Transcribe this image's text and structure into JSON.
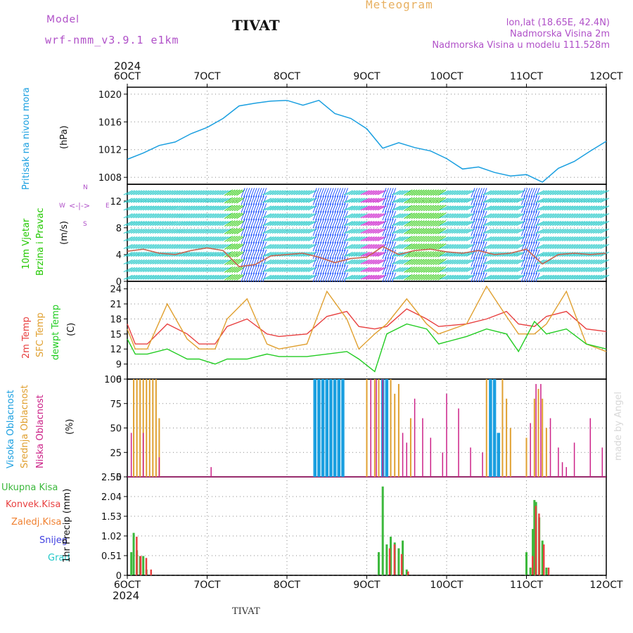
{
  "header": {
    "model_label": "Model",
    "model_name": "wrf-nmm_v3.9.1  e1km",
    "station": "TIVAT",
    "meteogram": "Meteogram",
    "lonlat": "lon,lat (18.65E, 42.4N)",
    "elevation": "Nadmorska Visina 2m",
    "model_elevation": "Nadmorska Visina u modelu 111.528m",
    "year_top": "2024",
    "year_bottom": "2024",
    "footer_station": "TIVAT",
    "credit": "made by Angel"
  },
  "colors": {
    "pressure": "#1a9fe0",
    "wind_cyan": "#22c8c8",
    "wind_green": "#22c800",
    "wind_blue": "#2255ff",
    "wind_magenta": "#cc22cc",
    "temp2m": "#e84040",
    "sfc": "#e0a030",
    "dew": "#22cc22",
    "high_cloud": "#1a9fe0",
    "mid_cloud": "#e0a030",
    "low_cloud": "#cc2288",
    "total_rain": "#3cb83c",
    "conv_rain": "#e84040",
    "frozen_rain": "#f08030",
    "snow": "#4040e0",
    "hail": "#22c8c8",
    "purple_text": "#b050c8",
    "meteogram_text": "#e8b060"
  },
  "chart_data": [
    {
      "type": "line",
      "name": "pressure",
      "ylabel_lines": [
        "Pritisak na nivou mora",
        "(hPa)"
      ],
      "ylim": [
        1007,
        1021
      ],
      "yticks": [
        "1020",
        "1016",
        "1012",
        "1008"
      ],
      "ytick_values": [
        1020,
        1016,
        1012,
        1008
      ],
      "x": [
        6,
        6.2,
        6.4,
        6.6,
        6.8,
        7.0,
        7.2,
        7.4,
        7.6,
        7.8,
        8.0,
        8.2,
        8.4,
        8.6,
        8.8,
        9.0,
        9.2,
        9.4,
        9.6,
        9.8,
        10.0,
        10.2,
        10.4,
        10.6,
        10.8,
        11.0,
        11.2,
        11.4,
        11.6,
        11.8,
        12.0
      ],
      "y": [
        1010.6,
        1011.5,
        1012.6,
        1013.1,
        1014.3,
        1015.2,
        1016.5,
        1018.3,
        1018.7,
        1019.0,
        1019.1,
        1018.4,
        1019.1,
        1017.2,
        1016.5,
        1015.0,
        1012.2,
        1013.0,
        1012.3,
        1011.8,
        1010.7,
        1009.2,
        1009.5,
        1008.7,
        1008.2,
        1008.4,
        1007.3,
        1009.3,
        1010.3,
        1011.8,
        1013.2
      ]
    },
    {
      "type": "line",
      "name": "wind",
      "ylabel_lines": [
        "10m Vjetar",
        "Brzina i Pravac",
        "(m/s)"
      ],
      "ylim": [
        0,
        14.5
      ],
      "yticks": [
        "12",
        "8",
        "4",
        "0"
      ],
      "ytick_values": [
        12,
        8,
        4,
        0
      ],
      "compass": [
        "N",
        "E",
        "S",
        "W"
      ],
      "x": [
        6,
        6.2,
        6.4,
        6.6,
        6.8,
        7.0,
        7.2,
        7.4,
        7.6,
        7.8,
        8.0,
        8.2,
        8.4,
        8.6,
        8.8,
        9.0,
        9.2,
        9.4,
        9.6,
        9.8,
        10.0,
        10.2,
        10.4,
        10.6,
        10.8,
        11.0,
        11.2,
        11.4,
        11.6,
        11.8,
        12.0
      ],
      "y": [
        4.5,
        4.8,
        4.2,
        4.0,
        4.6,
        5.0,
        4.6,
        2.2,
        2.5,
        3.8,
        4.0,
        4.2,
        3.6,
        2.8,
        3.4,
        3.6,
        5.2,
        4.0,
        4.6,
        4.8,
        4.4,
        4.2,
        4.6,
        4.0,
        4.2,
        4.8,
        2.6,
        4.0,
        4.2,
        4.0,
        4.2
      ]
    },
    {
      "type": "line",
      "name": "temperature",
      "ylabel_lines": [
        "2m Temp",
        "SFC Temp",
        "dewpt Temp",
        "(C)"
      ],
      "ylim": [
        6,
        25.5
      ],
      "yticks": [
        "24",
        "21",
        "18",
        "15",
        "12",
        "9",
        "6"
      ],
      "ytick_values": [
        24,
        21,
        18,
        15,
        12,
        9,
        6
      ],
      "series": [
        {
          "name": "2m Temp",
          "x": [
            6,
            6.1,
            6.25,
            6.5,
            6.75,
            6.9,
            7.1,
            7.25,
            7.5,
            7.75,
            7.9,
            8.25,
            8.5,
            8.75,
            8.9,
            9.1,
            9.25,
            9.5,
            9.75,
            9.9,
            10.25,
            10.5,
            10.75,
            10.9,
            11.1,
            11.25,
            11.5,
            11.75,
            12
          ],
          "y": [
            17,
            13,
            13,
            17,
            15,
            13,
            13,
            16.5,
            18,
            15,
            14.5,
            15,
            18.5,
            19.5,
            16.5,
            16,
            16.5,
            20,
            18,
            16.5,
            17,
            18,
            19.5,
            17,
            16.5,
            18.5,
            19.5,
            16,
            15.5
          ]
        },
        {
          "name": "SFC Temp",
          "x": [
            6,
            6.1,
            6.25,
            6.5,
            6.75,
            6.9,
            7.1,
            7.25,
            7.5,
            7.75,
            7.9,
            8.25,
            8.5,
            8.75,
            8.9,
            9.1,
            9.25,
            9.5,
            9.75,
            9.9,
            10.25,
            10.5,
            10.75,
            10.9,
            11.1,
            11.25,
            11.5,
            11.75,
            12
          ],
          "y": [
            16,
            12,
            12,
            21,
            14,
            12,
            12,
            18,
            22,
            13,
            12,
            13,
            23.5,
            18,
            12,
            15,
            17,
            22,
            17,
            15,
            17,
            24.5,
            18.5,
            15,
            15,
            17,
            23.5,
            13,
            11.5
          ]
        },
        {
          "name": "dewpt Temp",
          "x": [
            6,
            6.1,
            6.25,
            6.5,
            6.75,
            6.9,
            7.1,
            7.25,
            7.5,
            7.75,
            7.9,
            8.25,
            8.5,
            8.75,
            8.9,
            9.1,
            9.25,
            9.5,
            9.75,
            9.9,
            10.25,
            10.5,
            10.75,
            10.9,
            11.1,
            11.25,
            11.5,
            11.75,
            12
          ],
          "y": [
            14,
            11,
            11,
            12,
            10,
            10,
            9,
            10,
            10,
            11,
            10.5,
            10.5,
            11,
            11.5,
            10,
            7.5,
            15,
            17,
            16,
            13,
            14.5,
            16,
            15,
            11.5,
            17.5,
            15,
            16,
            13,
            12
          ]
        }
      ]
    },
    {
      "type": "bar",
      "name": "cloud",
      "ylabel_lines": [
        "Visoka Oblacnost",
        "Srednja Oblacnost",
        "Niska Oblacnost",
        "(%)"
      ],
      "ylim": [
        0,
        100
      ],
      "yticks": [
        "100",
        "75",
        "50",
        "25",
        "0"
      ],
      "ytick_values": [
        100,
        75,
        50,
        25,
        0
      ],
      "series": [
        {
          "name": "Visoka Oblacnost",
          "x": [
            8.35,
            8.4,
            8.45,
            8.5,
            8.55,
            8.6,
            8.65,
            8.7,
            9.2,
            9.25,
            10.55,
            10.6,
            10.65
          ],
          "values": [
            100,
            100,
            100,
            100,
            100,
            100,
            100,
            100,
            100,
            100,
            100,
            100,
            45
          ]
        },
        {
          "name": "Srednja Oblacnost",
          "x": [
            6.08,
            6.12,
            6.16,
            6.2,
            6.24,
            6.28,
            6.32,
            6.36,
            6.4,
            9.0,
            9.1,
            9.15,
            9.3,
            9.35,
            9.4,
            9.55,
            10.5,
            10.7,
            10.75,
            10.8,
            11.0,
            11.1,
            11.15,
            11.2,
            11.25
          ],
          "values": [
            100,
            100,
            100,
            100,
            100,
            100,
            100,
            100,
            60,
            100,
            100,
            100,
            100,
            85,
            95,
            60,
            100,
            100,
            80,
            50,
            40,
            80,
            90,
            80,
            50
          ]
        },
        {
          "name": "Niska Oblacnost",
          "x": [
            6.05,
            6.2,
            6.4,
            7.05,
            9.05,
            9.12,
            9.2,
            9.45,
            9.5,
            9.6,
            9.7,
            9.8,
            9.95,
            10.0,
            10.15,
            10.3,
            10.45,
            11.05,
            11.12,
            11.18,
            11.3,
            11.4,
            11.45,
            11.5,
            11.6,
            11.8,
            11.95
          ],
          "values": [
            45,
            45,
            20,
            10,
            100,
            100,
            100,
            45,
            35,
            80,
            60,
            40,
            25,
            85,
            70,
            30,
            25,
            55,
            95,
            95,
            60,
            30,
            15,
            10,
            35,
            60,
            30
          ]
        }
      ]
    },
    {
      "type": "bar",
      "name": "precipitation",
      "legend": [
        "Ukupna Kisa",
        "Konvek.Kisa",
        "Zaledj.Kisa",
        "Snijeg",
        "Grad"
      ],
      "ylabel_lines": [
        "1hr Precip (mm)"
      ],
      "ylim": [
        0,
        2.55
      ],
      "yticks": [
        "2.55",
        "2.04",
        "1.53",
        "1.02",
        "0.51",
        "0"
      ],
      "ytick_values": [
        2.55,
        2.04,
        1.53,
        1.02,
        0.51,
        0
      ],
      "series": [
        {
          "name": "Ukupna Kisa",
          "x": [
            6.05,
            6.08,
            6.12,
            6.16,
            6.2,
            6.24,
            6.28,
            9.15,
            9.2,
            9.25,
            9.3,
            9.35,
            9.4,
            9.45,
            9.5,
            11.0,
            11.05,
            11.08,
            11.1,
            11.12,
            11.16,
            11.2,
            11.25
          ],
          "values": [
            0.6,
            1.1,
            0.65,
            0.5,
            0.5,
            0.15,
            0.0,
            0.6,
            2.3,
            0.8,
            1.0,
            0.85,
            0.7,
            0.9,
            0.15,
            0.6,
            0.2,
            1.2,
            1.95,
            1.9,
            1.5,
            0.9,
            0.2
          ]
        },
        {
          "name": "Konvek.Kisa",
          "x": [
            6.1,
            6.15,
            6.22,
            6.28,
            9.27,
            9.33,
            9.42,
            9.5,
            11.06,
            11.1,
            11.14,
            11.2,
            11.26
          ],
          "values": [
            1.0,
            0.5,
            0.45,
            0.15,
            0.7,
            0.8,
            0.55,
            0.1,
            0.5,
            1.8,
            1.6,
            0.8,
            0.2
          ]
        }
      ]
    }
  ],
  "x_axis": {
    "ticks": [
      "6OCT",
      "7OCT",
      "8OCT",
      "9OCT",
      "10OCT",
      "11OCT",
      "12OCT"
    ],
    "values": [
      6,
      7,
      8,
      9,
      10,
      11,
      12
    ],
    "range": [
      6,
      12
    ]
  }
}
